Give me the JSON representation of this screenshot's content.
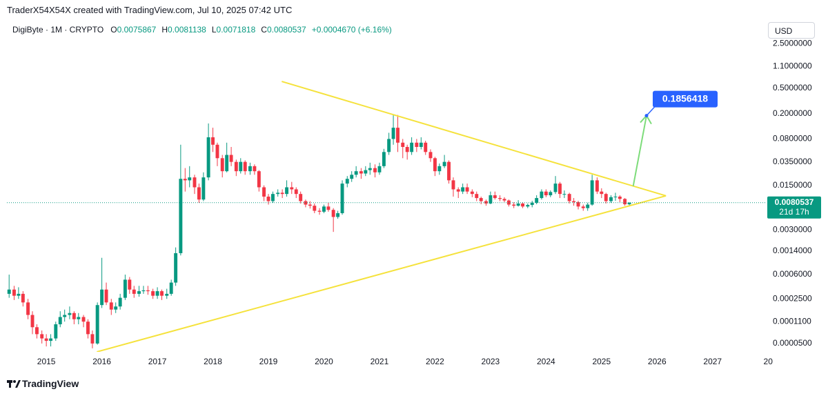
{
  "header": {
    "credit": "TraderX54X54X created with TradingView.com, Jul 10, 2025 07:42 UTC",
    "symbol": "DigiByte · 1M · CRYPTO",
    "ohlc_labels": [
      "O",
      "H",
      "L",
      "C"
    ],
    "change": "+0.0004670 (+6.16%)",
    "currency": "USD",
    "countdown": "21d 17h"
  },
  "footer": {
    "brand": "TradingView"
  },
  "chart_data": {
    "type": "candlestick",
    "log_scale": true,
    "grid": false,
    "up_color": "#089981",
    "down_color": "#f23645",
    "x": [
      2014.33,
      2014.42,
      2014.5,
      2014.58,
      2014.67,
      2014.75,
      2014.83,
      2014.92,
      2015,
      2015.08,
      2015.17,
      2015.25,
      2015.33,
      2015.42,
      2015.5,
      2015.58,
      2015.67,
      2015.75,
      2015.83,
      2015.92,
      2016,
      2016.08,
      2016.17,
      2016.25,
      2016.33,
      2016.42,
      2016.5,
      2016.58,
      2016.67,
      2016.75,
      2016.83,
      2016.92,
      2017,
      2017.08,
      2017.17,
      2017.25,
      2017.33,
      2017.42,
      2017.5,
      2017.58,
      2017.67,
      2017.75,
      2017.83,
      2017.92,
      2018,
      2018.08,
      2018.17,
      2018.25,
      2018.33,
      2018.42,
      2018.5,
      2018.58,
      2018.67,
      2018.75,
      2018.83,
      2018.92,
      2019,
      2019.08,
      2019.17,
      2019.25,
      2019.33,
      2019.42,
      2019.5,
      2019.58,
      2019.67,
      2019.75,
      2019.83,
      2019.92,
      2020,
      2020.08,
      2020.17,
      2020.25,
      2020.33,
      2020.42,
      2020.5,
      2020.58,
      2020.67,
      2020.75,
      2020.83,
      2020.92,
      2021,
      2021.08,
      2021.17,
      2021.25,
      2021.33,
      2021.42,
      2021.5,
      2021.58,
      2021.67,
      2021.75,
      2021.83,
      2021.92,
      2022,
      2022.08,
      2022.17,
      2022.25,
      2022.33,
      2022.42,
      2022.5,
      2022.58,
      2022.67,
      2022.75,
      2022.83,
      2022.92,
      2023,
      2023.08,
      2023.17,
      2023.25,
      2023.33,
      2023.42,
      2023.5,
      2023.58,
      2023.67,
      2023.75,
      2023.83,
      2023.92,
      2024,
      2024.08,
      2024.17,
      2024.25,
      2024.33,
      2024.42,
      2024.5,
      2024.58,
      2024.67,
      2024.75,
      2024.83,
      2024.92,
      2025,
      2025.08,
      2025.17,
      2025.25,
      2025.33,
      2025.42,
      2025.5
    ],
    "open": [
      0.0003,
      0.00035,
      0.00028,
      0.0003,
      0.00022,
      0.00014,
      9e-05,
      7e-05,
      6e-05,
      5.5e-05,
      6e-05,
      0.0001,
      0.00013,
      0.00014,
      0.00015,
      0.00012,
      0.00013,
      0.00011,
      7e-05,
      5e-05,
      0.0002,
      0.00035,
      0.00022,
      0.00017,
      0.00019,
      0.00026,
      0.0005,
      0.00035,
      0.0003,
      0.00033,
      0.00034,
      0.00033,
      0.00028,
      0.00033,
      0.00028,
      0.0003,
      0.00045,
      0.0013,
      0.019,
      0.018,
      0.02,
      0.014,
      0.009,
      0.02,
      0.085,
      0.065,
      0.04,
      0.025,
      0.045,
      0.035,
      0.025,
      0.035,
      0.025,
      0.03,
      0.025,
      0.014,
      0.01,
      0.0085,
      0.011,
      0.0115,
      0.011,
      0.014,
      0.013,
      0.011,
      0.0085,
      0.0075,
      0.0072,
      0.006,
      0.0058,
      0.007,
      0.0062,
      0.0048,
      0.0055,
      0.016,
      0.019,
      0.022,
      0.025,
      0.023,
      0.026,
      0.028,
      0.024,
      0.03,
      0.05,
      0.08,
      0.12,
      0.07,
      0.06,
      0.05,
      0.07,
      0.06,
      0.07,
      0.05,
      0.04,
      0.025,
      0.03,
      0.035,
      0.018,
      0.013,
      0.012,
      0.014,
      0.012,
      0.011,
      0.0095,
      0.0085,
      0.0078,
      0.0105,
      0.0095,
      0.0092,
      0.0087,
      0.0075,
      0.0072,
      0.0078,
      0.007,
      0.0074,
      0.008,
      0.0095,
      0.012,
      0.0105,
      0.0118,
      0.016,
      0.011,
      0.011,
      0.0085,
      0.0082,
      0.007,
      0.0066,
      0.0075,
      0.018,
      0.012,
      0.011,
      0.0085,
      0.0098,
      0.01,
      0.0092,
      0.0075867
    ],
    "high": [
      0.0006,
      0.0004,
      0.00038,
      0.00033,
      0.00025,
      0.00016,
      0.0001,
      8e-05,
      7e-05,
      7e-05,
      0.00011,
      0.00016,
      0.00017,
      0.00019,
      0.00016,
      0.00015,
      0.00014,
      0.00012,
      8e-05,
      0.00022,
      0.0011,
      0.00045,
      0.00025,
      0.00022,
      0.0003,
      0.0006,
      0.00055,
      0.0004,
      0.0004,
      0.0004,
      0.0004,
      0.00036,
      0.00038,
      0.00035,
      0.00036,
      0.0005,
      0.0016,
      0.065,
      0.028,
      0.03,
      0.022,
      0.016,
      0.024,
      0.14,
      0.12,
      0.07,
      0.045,
      0.07,
      0.06,
      0.038,
      0.04,
      0.037,
      0.034,
      0.032,
      0.026,
      0.015,
      0.011,
      0.012,
      0.013,
      0.013,
      0.018,
      0.017,
      0.014,
      0.012,
      0.009,
      0.0085,
      0.0078,
      0.0066,
      0.0075,
      0.008,
      0.0066,
      0.006,
      0.018,
      0.021,
      0.025,
      0.03,
      0.028,
      0.03,
      0.034,
      0.032,
      0.034,
      0.056,
      0.1,
      0.19,
      0.19,
      0.08,
      0.065,
      0.085,
      0.08,
      0.085,
      0.075,
      0.055,
      0.042,
      0.033,
      0.045,
      0.037,
      0.02,
      0.014,
      0.016,
      0.016,
      0.013,
      0.012,
      0.01,
      0.009,
      0.012,
      0.012,
      0.0105,
      0.0098,
      0.009,
      0.0082,
      0.0088,
      0.0082,
      0.0078,
      0.0086,
      0.0105,
      0.013,
      0.013,
      0.0125,
      0.021,
      0.017,
      0.0125,
      0.0115,
      0.0095,
      0.0086,
      0.0075,
      0.008,
      0.022,
      0.02,
      0.0135,
      0.0115,
      0.0105,
      0.0115,
      0.0105,
      0.0095,
      0.0081138
    ],
    "low": [
      0.00026,
      0.00024,
      0.00025,
      0.00019,
      0.00012,
      7e-05,
      6e-05,
      5e-05,
      4.5e-05,
      4.5e-05,
      5.5e-05,
      9e-05,
      0.00011,
      0.00012,
      0.0001,
      0.0001,
      9e-05,
      6e-05,
      4.2e-05,
      4.8e-05,
      0.00018,
      0.0002,
      0.00014,
      0.00015,
      0.00017,
      0.00024,
      0.0003,
      0.00026,
      0.00027,
      0.0003,
      0.00029,
      0.00025,
      0.00025,
      0.00024,
      0.00025,
      0.00028,
      0.0004,
      0.0012,
      0.012,
      0.014,
      0.011,
      0.008,
      0.0085,
      0.018,
      0.05,
      0.03,
      0.02,
      0.024,
      0.03,
      0.021,
      0.023,
      0.022,
      0.022,
      0.022,
      0.012,
      0.0085,
      0.0075,
      0.008,
      0.01,
      0.0095,
      0.01,
      0.011,
      0.0095,
      0.0078,
      0.0068,
      0.0065,
      0.0055,
      0.0052,
      0.0055,
      0.0058,
      0.0028,
      0.0045,
      0.0052,
      0.014,
      0.017,
      0.02,
      0.019,
      0.021,
      0.022,
      0.02,
      0.022,
      0.028,
      0.045,
      0.065,
      0.05,
      0.04,
      0.038,
      0.045,
      0.05,
      0.055,
      0.045,
      0.035,
      0.021,
      0.022,
      0.028,
      0.016,
      0.01,
      0.0095,
      0.011,
      0.011,
      0.0098,
      0.0085,
      0.0076,
      0.0072,
      0.0076,
      0.009,
      0.0085,
      0.0082,
      0.007,
      0.0066,
      0.007,
      0.0066,
      0.0066,
      0.0068,
      0.0076,
      0.009,
      0.0098,
      0.0098,
      0.011,
      0.0095,
      0.0095,
      0.0078,
      0.0072,
      0.0063,
      0.006,
      0.006,
      0.0072,
      0.011,
      0.0095,
      0.0078,
      0.008,
      0.0086,
      0.0082,
      0.0072,
      0.0071818
    ],
    "close": [
      0.00035,
      0.00028,
      0.0003,
      0.00022,
      0.00014,
      9e-05,
      7e-05,
      6e-05,
      5.5e-05,
      6e-05,
      0.0001,
      0.00013,
      0.00014,
      0.00015,
      0.00012,
      0.00013,
      0.00011,
      7e-05,
      5e-05,
      0.0002,
      0.00035,
      0.00022,
      0.00017,
      0.00019,
      0.00026,
      0.0005,
      0.00035,
      0.0003,
      0.00033,
      0.00034,
      0.00033,
      0.00028,
      0.00033,
      0.00028,
      0.0003,
      0.00045,
      0.0013,
      0.019,
      0.018,
      0.02,
      0.014,
      0.009,
      0.02,
      0.085,
      0.065,
      0.04,
      0.025,
      0.045,
      0.035,
      0.025,
      0.035,
      0.025,
      0.03,
      0.025,
      0.014,
      0.01,
      0.0085,
      0.011,
      0.0115,
      0.011,
      0.014,
      0.013,
      0.011,
      0.0085,
      0.0075,
      0.0072,
      0.006,
      0.0058,
      0.007,
      0.0062,
      0.0048,
      0.0055,
      0.016,
      0.019,
      0.022,
      0.025,
      0.023,
      0.026,
      0.028,
      0.024,
      0.03,
      0.05,
      0.08,
      0.12,
      0.07,
      0.06,
      0.05,
      0.07,
      0.06,
      0.07,
      0.05,
      0.04,
      0.025,
      0.03,
      0.035,
      0.018,
      0.013,
      0.012,
      0.014,
      0.012,
      0.011,
      0.0095,
      0.0085,
      0.0078,
      0.0105,
      0.0095,
      0.0092,
      0.0087,
      0.0075,
      0.0072,
      0.0078,
      0.007,
      0.0074,
      0.008,
      0.0095,
      0.012,
      0.0105,
      0.0118,
      0.016,
      0.011,
      0.011,
      0.0085,
      0.0082,
      0.007,
      0.0066,
      0.0075,
      0.018,
      0.012,
      0.011,
      0.0085,
      0.0098,
      0.01,
      0.0092,
      0.0075867,
      0.0080537
    ],
    "xlim": [
      2014.29,
      2027.96
    ],
    "xticks": [
      2015,
      2016,
      2017,
      2018,
      2019,
      2020,
      2021,
      2022,
      2023,
      2024,
      2025,
      2026,
      2027,
      {
        "value": 2028,
        "label": "20"
      }
    ],
    "ylim": [
      3.7e-05,
      5.7
    ],
    "yticks": [
      {
        "value": 2.5,
        "label": "2.5000000"
      },
      {
        "value": 1.1,
        "label": "1.1000000"
      },
      {
        "value": 0.5,
        "label": "0.5000000"
      },
      {
        "value": 0.2,
        "label": "0.2000000"
      },
      {
        "value": 0.08,
        "label": "0.0800000"
      },
      {
        "value": 0.035,
        "label": "0.0350000"
      },
      {
        "value": 0.015,
        "label": "0.0150000"
      },
      {
        "value": 0.003,
        "label": "0.0030000"
      },
      {
        "value": 0.0014,
        "label": "0.0014000"
      },
      {
        "value": 0.0006,
        "label": "0.0006000"
      },
      {
        "value": 0.00025,
        "label": "0.0002500"
      },
      {
        "value": 0.00011,
        "label": "0.0001100"
      },
      {
        "value": 5e-05,
        "label": "0.0000500"
      }
    ],
    "trendlines": [
      {
        "color": "#f5e23c",
        "x": [
          2019.24,
          2026.16
        ],
        "y": [
          0.637,
          0.0103
        ]
      },
      {
        "color": "#f5e23c",
        "x": [
          2015.91,
          2026.16
        ],
        "y": [
          3.7e-05,
          0.0103
        ]
      }
    ],
    "projection": {
      "color": "#7ddc7a",
      "label_color": "#2962ff",
      "x": [
        2025.57,
        2025.81
      ],
      "y": [
        0.0146,
        0.1856418
      ]
    }
  }
}
